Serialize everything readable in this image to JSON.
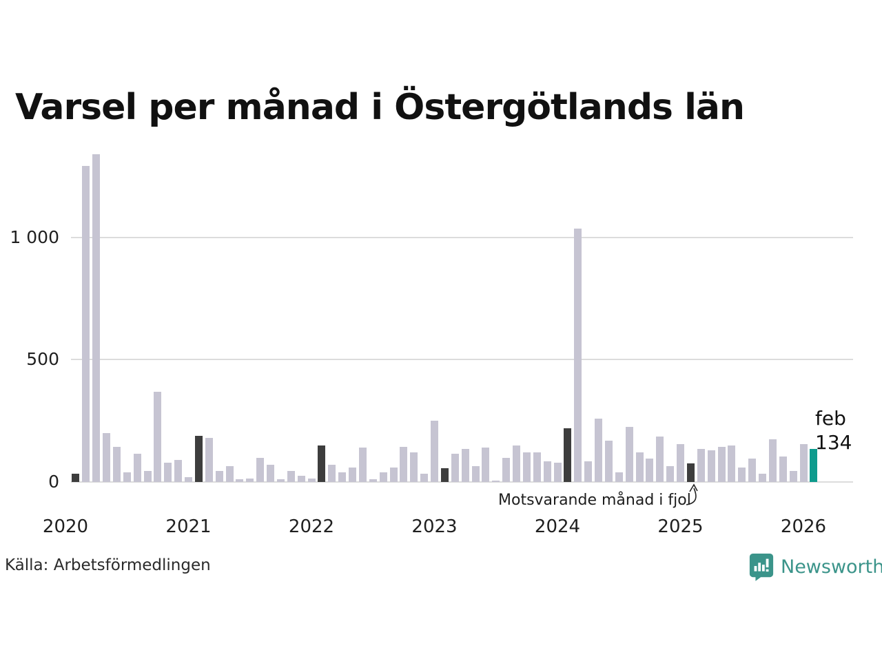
{
  "page": {
    "title": "Varsel per månad i Östergötlands län",
    "source": "Källa: Arbetsförmedlingen"
  },
  "annotation": {
    "text": "Motsvarande månad i fjol"
  },
  "highlight": {
    "month_label": "feb",
    "value_label": "134"
  },
  "branding": {
    "name": "Newsworthy",
    "icon": "newsworthy-speech-bubble-chart-icon",
    "color": "#3b948a"
  },
  "colors": {
    "bar": "#c6c4d2",
    "bar_last_year_month": "#3d3d3d",
    "bar_current": "#0e9b8d",
    "grid": "#dcdcdc",
    "text": "#1a1a1a"
  },
  "chart_data": {
    "type": "bar",
    "title": "Varsel per månad i Östergötlands län",
    "xlabel": "",
    "ylabel": "",
    "ylim": [
      0,
      1400
    ],
    "y_ticks": [
      0,
      500,
      1000
    ],
    "y_tick_labels": [
      "0",
      "500",
      "1 000"
    ],
    "x_tick_labels": [
      "2020",
      "2021",
      "2022",
      "2023",
      "2024",
      "2025",
      "2026"
    ],
    "grid": "horizontal",
    "legend": "none",
    "highlight_note": "Dark bars mark February of each year (Motsvarande månad i fjol points at feb 2025); teal bar is the latest month feb 2026 = 134",
    "months": [
      {
        "month": "2020-02",
        "value": 35,
        "kind": "fjol"
      },
      {
        "month": "2020-03",
        "value": 1290,
        "kind": "normal"
      },
      {
        "month": "2020-04",
        "value": 1340,
        "kind": "normal"
      },
      {
        "month": "2020-05",
        "value": 200,
        "kind": "normal"
      },
      {
        "month": "2020-06",
        "value": 145,
        "kind": "normal"
      },
      {
        "month": "2020-07",
        "value": 40,
        "kind": "normal"
      },
      {
        "month": "2020-08",
        "value": 115,
        "kind": "normal"
      },
      {
        "month": "2020-09",
        "value": 45,
        "kind": "normal"
      },
      {
        "month": "2020-10",
        "value": 370,
        "kind": "normal"
      },
      {
        "month": "2020-11",
        "value": 80,
        "kind": "normal"
      },
      {
        "month": "2020-12",
        "value": 90,
        "kind": "normal"
      },
      {
        "month": "2021-01",
        "value": 20,
        "kind": "normal"
      },
      {
        "month": "2021-02",
        "value": 190,
        "kind": "fjol"
      },
      {
        "month": "2021-03",
        "value": 180,
        "kind": "normal"
      },
      {
        "month": "2021-04",
        "value": 45,
        "kind": "normal"
      },
      {
        "month": "2021-05",
        "value": 65,
        "kind": "normal"
      },
      {
        "month": "2021-06",
        "value": 10,
        "kind": "normal"
      },
      {
        "month": "2021-07",
        "value": 15,
        "kind": "normal"
      },
      {
        "month": "2021-08",
        "value": 100,
        "kind": "normal"
      },
      {
        "month": "2021-09",
        "value": 70,
        "kind": "normal"
      },
      {
        "month": "2021-10",
        "value": 10,
        "kind": "normal"
      },
      {
        "month": "2021-11",
        "value": 45,
        "kind": "normal"
      },
      {
        "month": "2021-12",
        "value": 25,
        "kind": "normal"
      },
      {
        "month": "2022-01",
        "value": 15,
        "kind": "normal"
      },
      {
        "month": "2022-02",
        "value": 150,
        "kind": "fjol"
      },
      {
        "month": "2022-03",
        "value": 70,
        "kind": "normal"
      },
      {
        "month": "2022-04",
        "value": 40,
        "kind": "normal"
      },
      {
        "month": "2022-05",
        "value": 60,
        "kind": "normal"
      },
      {
        "month": "2022-06",
        "value": 140,
        "kind": "normal"
      },
      {
        "month": "2022-07",
        "value": 10,
        "kind": "normal"
      },
      {
        "month": "2022-08",
        "value": 40,
        "kind": "normal"
      },
      {
        "month": "2022-09",
        "value": 60,
        "kind": "normal"
      },
      {
        "month": "2022-10",
        "value": 145,
        "kind": "normal"
      },
      {
        "month": "2022-11",
        "value": 120,
        "kind": "normal"
      },
      {
        "month": "2022-12",
        "value": 35,
        "kind": "normal"
      },
      {
        "month": "2023-01",
        "value": 250,
        "kind": "normal"
      },
      {
        "month": "2023-02",
        "value": 55,
        "kind": "fjol"
      },
      {
        "month": "2023-03",
        "value": 115,
        "kind": "normal"
      },
      {
        "month": "2023-04",
        "value": 135,
        "kind": "normal"
      },
      {
        "month": "2023-05",
        "value": 65,
        "kind": "normal"
      },
      {
        "month": "2023-06",
        "value": 140,
        "kind": "normal"
      },
      {
        "month": "2023-07",
        "value": 5,
        "kind": "normal"
      },
      {
        "month": "2023-08",
        "value": 100,
        "kind": "normal"
      },
      {
        "month": "2023-09",
        "value": 150,
        "kind": "normal"
      },
      {
        "month": "2023-10",
        "value": 120,
        "kind": "normal"
      },
      {
        "month": "2023-11",
        "value": 120,
        "kind": "normal"
      },
      {
        "month": "2023-12",
        "value": 85,
        "kind": "normal"
      },
      {
        "month": "2024-01",
        "value": 80,
        "kind": "normal"
      },
      {
        "month": "2024-02",
        "value": 220,
        "kind": "fjol"
      },
      {
        "month": "2024-03",
        "value": 1035,
        "kind": "normal"
      },
      {
        "month": "2024-04",
        "value": 85,
        "kind": "normal"
      },
      {
        "month": "2024-05",
        "value": 260,
        "kind": "normal"
      },
      {
        "month": "2024-06",
        "value": 170,
        "kind": "normal"
      },
      {
        "month": "2024-07",
        "value": 40,
        "kind": "normal"
      },
      {
        "month": "2024-08",
        "value": 225,
        "kind": "normal"
      },
      {
        "month": "2024-09",
        "value": 120,
        "kind": "normal"
      },
      {
        "month": "2024-10",
        "value": 95,
        "kind": "normal"
      },
      {
        "month": "2024-11",
        "value": 185,
        "kind": "normal"
      },
      {
        "month": "2024-12",
        "value": 65,
        "kind": "normal"
      },
      {
        "month": "2025-01",
        "value": 155,
        "kind": "normal"
      },
      {
        "month": "2025-02",
        "value": 75,
        "kind": "fjol"
      },
      {
        "month": "2025-03",
        "value": 135,
        "kind": "normal"
      },
      {
        "month": "2025-04",
        "value": 130,
        "kind": "normal"
      },
      {
        "month": "2025-05",
        "value": 145,
        "kind": "normal"
      },
      {
        "month": "2025-06",
        "value": 150,
        "kind": "normal"
      },
      {
        "month": "2025-07",
        "value": 60,
        "kind": "normal"
      },
      {
        "month": "2025-08",
        "value": 95,
        "kind": "normal"
      },
      {
        "month": "2025-09",
        "value": 35,
        "kind": "normal"
      },
      {
        "month": "2025-10",
        "value": 175,
        "kind": "normal"
      },
      {
        "month": "2025-11",
        "value": 105,
        "kind": "normal"
      },
      {
        "month": "2025-12",
        "value": 45,
        "kind": "normal"
      },
      {
        "month": "2026-01",
        "value": 155,
        "kind": "normal"
      },
      {
        "month": "2026-02",
        "value": 134,
        "kind": "current"
      }
    ]
  }
}
